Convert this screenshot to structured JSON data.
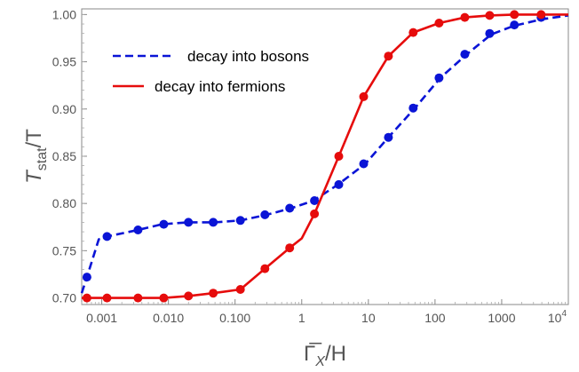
{
  "chart_data": {
    "type": "line",
    "x_scale": "log",
    "xlim": [
      0.0005,
      10000
    ],
    "ylim": [
      0.693,
      1.006
    ],
    "ylabel": {
      "main": "T",
      "sub": "stat",
      "rest": "/T"
    },
    "xlabel": {
      "main": "Γ̅",
      "sub": "X",
      "rest": "/H"
    },
    "x_ticks": [
      {
        "value": 0.001,
        "label": "0.001"
      },
      {
        "value": 0.01,
        "label": "0.010"
      },
      {
        "value": 0.1,
        "label": "0.100"
      },
      {
        "value": 1,
        "label": "1"
      },
      {
        "value": 10,
        "label": "10"
      },
      {
        "value": 100,
        "label": "100"
      },
      {
        "value": 1000,
        "label": "1000"
      },
      {
        "value": 10000,
        "label": "10",
        "exp": "4"
      }
    ],
    "y_ticks": [
      {
        "value": 0.7,
        "label": "0.70"
      },
      {
        "value": 0.75,
        "label": "0.75"
      },
      {
        "value": 0.8,
        "label": "0.80"
      },
      {
        "value": 0.85,
        "label": "0.85"
      },
      {
        "value": 0.9,
        "label": "0.90"
      },
      {
        "value": 0.95,
        "label": "0.95"
      },
      {
        "value": 1.0,
        "label": "1.00"
      }
    ],
    "legend_position": "top-left",
    "series": [
      {
        "name": "decay into bosons",
        "color": "#0a14d6",
        "dashed": true,
        "line": [
          [
            0.0005,
            0.705
          ],
          [
            0.0006,
            0.722
          ],
          [
            0.0009,
            0.762
          ],
          [
            0.0012,
            0.765
          ],
          [
            0.0035,
            0.772
          ],
          [
            0.008,
            0.778
          ],
          [
            0.02,
            0.78
          ],
          [
            0.05,
            0.78
          ],
          [
            0.12,
            0.782
          ],
          [
            0.3,
            0.788
          ],
          [
            0.7,
            0.795
          ],
          [
            1.5,
            0.803
          ],
          [
            3.5,
            0.82
          ],
          [
            9,
            0.842
          ],
          [
            20,
            0.87
          ],
          [
            50,
            0.901
          ],
          [
            120,
            0.933
          ],
          [
            300,
            0.958
          ],
          [
            700,
            0.979
          ],
          [
            1500,
            0.988
          ],
          [
            4000,
            0.995
          ],
          [
            10000,
            0.999
          ]
        ],
        "points": [
          [
            0.0006,
            0.722
          ],
          [
            0.0012,
            0.765
          ],
          [
            0.0035,
            0.772
          ],
          [
            0.0085,
            0.778
          ],
          [
            0.02,
            0.78
          ],
          [
            0.047,
            0.78
          ],
          [
            0.12,
            0.782
          ],
          [
            0.28,
            0.788
          ],
          [
            0.66,
            0.795
          ],
          [
            1.55,
            0.803
          ],
          [
            3.6,
            0.82
          ],
          [
            8.5,
            0.842
          ],
          [
            20,
            0.87
          ],
          [
            47,
            0.901
          ],
          [
            115,
            0.933
          ],
          [
            280,
            0.958
          ],
          [
            660,
            0.98
          ],
          [
            1550,
            0.989
          ],
          [
            3900,
            0.997
          ]
        ]
      },
      {
        "name": "decay into fermions",
        "color": "#e60c0c",
        "dashed": false,
        "line": [
          [
            0.0005,
            0.7
          ],
          [
            0.0006,
            0.7
          ],
          [
            0.0012,
            0.7
          ],
          [
            0.0035,
            0.7
          ],
          [
            0.0085,
            0.7
          ],
          [
            0.02,
            0.702
          ],
          [
            0.047,
            0.705
          ],
          [
            0.12,
            0.709
          ],
          [
            0.28,
            0.731
          ],
          [
            0.66,
            0.753
          ],
          [
            1.0,
            0.763
          ],
          [
            1.55,
            0.789
          ],
          [
            3.6,
            0.85
          ],
          [
            8.5,
            0.913
          ],
          [
            20,
            0.956
          ],
          [
            47,
            0.981
          ],
          [
            115,
            0.991
          ],
          [
            280,
            0.997
          ],
          [
            660,
            0.999
          ],
          [
            1550,
            1.0
          ],
          [
            4000,
            1.0
          ],
          [
            10000,
            1.0
          ]
        ],
        "points": [
          [
            0.0006,
            0.7
          ],
          [
            0.0012,
            0.7
          ],
          [
            0.0035,
            0.7
          ],
          [
            0.0085,
            0.7
          ],
          [
            0.02,
            0.702
          ],
          [
            0.047,
            0.705
          ],
          [
            0.12,
            0.709
          ],
          [
            0.28,
            0.731
          ],
          [
            0.66,
            0.753
          ],
          [
            1.55,
            0.789
          ],
          [
            3.6,
            0.85
          ],
          [
            8.5,
            0.913
          ],
          [
            20,
            0.956
          ],
          [
            47,
            0.981
          ],
          [
            115,
            0.991
          ],
          [
            280,
            0.997
          ],
          [
            660,
            0.999
          ],
          [
            1550,
            1.0
          ],
          [
            3900,
            1.0
          ]
        ]
      }
    ]
  }
}
